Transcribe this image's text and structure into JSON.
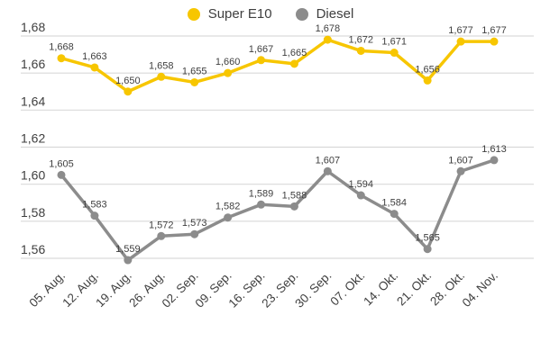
{
  "chart_data": {
    "type": "line",
    "title": "",
    "xlabel": "",
    "ylabel": "",
    "categories": [
      "05. Aug.",
      "12. Aug.",
      "19. Aug.",
      "26. Aug.",
      "02. Sep.",
      "09. Sep.",
      "16. Sep.",
      "23. Sep.",
      "30. Sep.",
      "07. Okt.",
      "14. Okt.",
      "21. Okt.",
      "28. Okt.",
      "04. Nov."
    ],
    "series": [
      {
        "id": "super-e10",
        "name": "Super E10",
        "color": "#F7C600",
        "values": [
          1.668,
          1.663,
          1.65,
          1.658,
          1.655,
          1.66,
          1.667,
          1.665,
          1.678,
          1.672,
          1.671,
          1.656,
          1.677,
          1.677
        ]
      },
      {
        "id": "diesel",
        "name": "Diesel",
        "color": "#8C8C8C",
        "values": [
          1.605,
          1.583,
          1.559,
          1.572,
          1.573,
          1.582,
          1.589,
          1.588,
          1.607,
          1.594,
          1.584,
          1.565,
          1.607,
          1.613
        ]
      }
    ],
    "y_ticks": [
      1.68,
      1.66,
      1.64,
      1.62,
      1.6,
      1.58,
      1.56
    ],
    "ylim": [
      1.56,
      1.68
    ],
    "grid": true,
    "legend_position": "top-center",
    "decimal_separator": ",",
    "value_decimals": 3,
    "tick_decimals": 2,
    "colors": {
      "grid": "#D9D9D9",
      "text": "#3F3F3F",
      "background": "#FFFFFF"
    }
  }
}
